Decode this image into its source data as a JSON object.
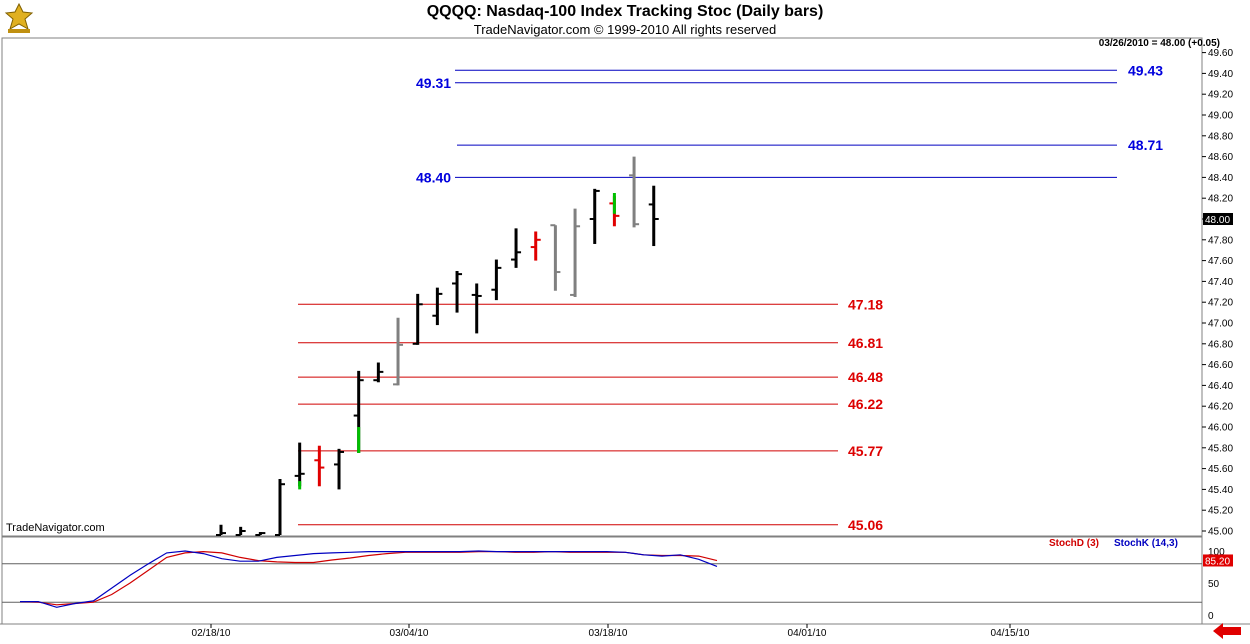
{
  "chart_data": [
    {
      "type": "ohlc",
      "title": "QQQQ:  Nasdaq-100 Index Tracking Stoc  (Daily bars)",
      "subtitle": "TradeNavigator.com © 1999-2010 All rights reserved",
      "last_info": "03/26/2010 = 48.00 (+0.05)",
      "last_price_label": "48.00",
      "watermark": "TradeNavigator.com",
      "ylim": [
        44.97,
        49.68
      ],
      "y_ticks": [
        "45.00",
        "45.20",
        "45.40",
        "45.60",
        "45.80",
        "46.00",
        "46.20",
        "46.40",
        "46.60",
        "46.80",
        "47.00",
        "47.20",
        "47.40",
        "47.60",
        "47.80",
        "48.00",
        "48.20",
        "48.40",
        "48.60",
        "48.80",
        "49.00",
        "49.20",
        "49.40",
        "49.60"
      ],
      "x_ticks": [
        "02/18/10",
        "03/04/10",
        "03/18/10",
        "04/01/10",
        "04/15/10"
      ],
      "bars": [
        {
          "o": 44.93,
          "h": 45.06,
          "l": 44.9,
          "c": 44.98,
          "color": "#000000"
        },
        {
          "o": 44.95,
          "h": 45.04,
          "l": 44.92,
          "c": 45.0,
          "color": "#000000"
        },
        {
          "o": 44.96,
          "h": 44.99,
          "l": 44.95,
          "c": 44.98,
          "color": "#000000"
        },
        {
          "o": 44.96,
          "h": 45.5,
          "l": 44.95,
          "c": 45.45,
          "color": "#000000"
        },
        {
          "o": 45.53,
          "h": 45.85,
          "l": 45.43,
          "c": 45.55,
          "color": "#000000"
        },
        {
          "o": 45.68,
          "h": 45.82,
          "l": 45.43,
          "c": 45.61,
          "color": "#e00000"
        },
        {
          "o": 45.64,
          "h": 45.79,
          "l": 45.4,
          "c": 45.76,
          "color": "#000000"
        },
        {
          "o": 46.11,
          "h": 46.54,
          "l": 45.75,
          "c": 46.45,
          "color": "#000000"
        },
        {
          "o": 46.45,
          "h": 46.62,
          "l": 46.43,
          "c": 46.53,
          "color": "#000000"
        },
        {
          "o": 46.41,
          "h": 47.05,
          "l": 46.4,
          "c": 46.79,
          "color": "#808080"
        },
        {
          "o": 46.8,
          "h": 47.28,
          "l": 46.79,
          "c": 47.18,
          "color": "#000000"
        },
        {
          "o": 47.07,
          "h": 47.34,
          "l": 46.98,
          "c": 47.28,
          "color": "#000000"
        },
        {
          "o": 47.38,
          "h": 47.5,
          "l": 47.1,
          "c": 47.47,
          "color": "#000000"
        },
        {
          "o": 47.27,
          "h": 47.38,
          "l": 46.9,
          "c": 47.26,
          "color": "#000000"
        },
        {
          "o": 47.32,
          "h": 47.61,
          "l": 47.22,
          "c": 47.53,
          "color": "#000000"
        },
        {
          "o": 47.61,
          "h": 47.91,
          "l": 47.53,
          "c": 47.68,
          "color": "#000000"
        },
        {
          "o": 47.73,
          "h": 47.88,
          "l": 47.6,
          "c": 47.8,
          "color": "#e00000"
        },
        {
          "o": 47.94,
          "h": 47.94,
          "l": 47.31,
          "c": 47.49,
          "color": "#808080"
        },
        {
          "o": 47.27,
          "h": 48.1,
          "l": 47.25,
          "c": 47.93,
          "color": "#808080"
        },
        {
          "o": 48.0,
          "h": 48.29,
          "l": 47.76,
          "c": 48.27,
          "color": "#000000"
        },
        {
          "o": 48.15,
          "h": 48.22,
          "l": 47.93,
          "c": 48.03,
          "color": "#e00000"
        },
        {
          "o": 48.42,
          "h": 48.6,
          "l": 47.92,
          "c": 47.95,
          "color": "#808080"
        },
        {
          "o": 48.14,
          "h": 48.32,
          "l": 47.74,
          "c": 48.0,
          "color": "#000000"
        }
      ],
      "bar_highlights": [
        {
          "bar": 4,
          "from": 45.4,
          "to": 45.48,
          "color": "#00c000"
        },
        {
          "bar": 7,
          "from": 45.75,
          "to": 46.0,
          "color": "#00c000"
        },
        {
          "bar": 20,
          "from": 48.05,
          "to": 48.25,
          "color": "#00c000"
        }
      ],
      "resistance_levels": [
        {
          "value": 49.43,
          "label_left": "",
          "label_right": "49.43"
        },
        {
          "value": 49.31,
          "label_left": "49.31",
          "label_right": ""
        },
        {
          "value": 48.71,
          "label_left": "",
          "label_right": "48.71"
        },
        {
          "value": 48.4,
          "label_left": "48.40",
          "label_right": ""
        }
      ],
      "support_levels": [
        {
          "value": 47.18,
          "label": "47.18"
        },
        {
          "value": 46.81,
          "label": "46.81"
        },
        {
          "value": 46.48,
          "label": "46.48"
        },
        {
          "value": 46.22,
          "label": "46.22"
        },
        {
          "value": 45.77,
          "label": "45.77"
        },
        {
          "value": 45.06,
          "label": "45.06"
        }
      ],
      "colors": {
        "resistance": "#0000c0",
        "support": "#d00000",
        "label_blue": "#0000dd",
        "label_red": "#dd0000"
      }
    },
    {
      "type": "line",
      "ylim": [
        0,
        100
      ],
      "y_ticks": [
        "0",
        "50",
        "100"
      ],
      "reference_lines": [
        20,
        80
      ],
      "last_value_label": "85.20",
      "series": [
        {
          "name": "StochD (3)",
          "color": "#d00000",
          "values": [
            21,
            20,
            16,
            18,
            20,
            32,
            50,
            70,
            90,
            97,
            99,
            97,
            90,
            85,
            83,
            82,
            82,
            86,
            89,
            93,
            96,
            98,
            98,
            98,
            98,
            99,
            99,
            98,
            98,
            99,
            98,
            98,
            98,
            98,
            94,
            93,
            93,
            92,
            85
          ]
        },
        {
          "name": "StochK (14,3)",
          "color": "#0000c0",
          "values": [
            21,
            21,
            12,
            18,
            22,
            42,
            62,
            80,
            97,
            100,
            96,
            88,
            84,
            84,
            90,
            93,
            96,
            97,
            98,
            99,
            99,
            99,
            99,
            99,
            99,
            100,
            99,
            99,
            99,
            99,
            99,
            99,
            99,
            98,
            94,
            92,
            94,
            87,
            76
          ]
        }
      ]
    }
  ]
}
